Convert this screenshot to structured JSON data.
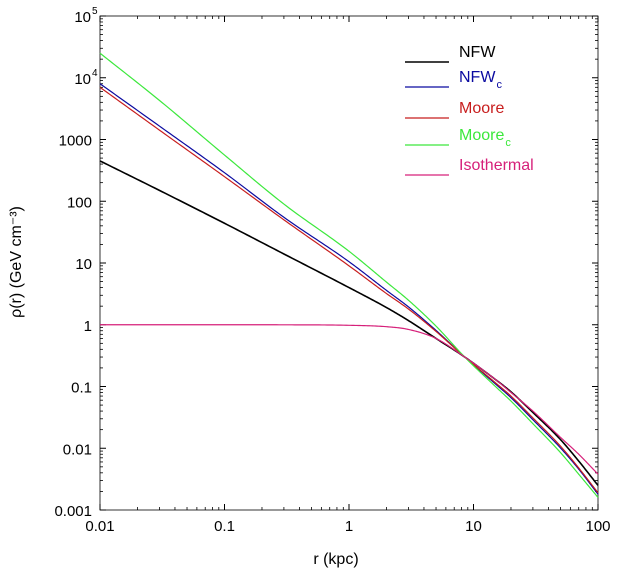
{
  "chart_data": {
    "type": "line",
    "xscale": "log",
    "yscale": "log",
    "xlim": [
      0.01,
      100
    ],
    "ylim": [
      0.001,
      100000
    ],
    "xlabel": "r (kpc)",
    "ylabel": "ρ(r) (GeV cm⁻³)",
    "x_ticks": [
      {
        "value": 0.01,
        "label": "0.01"
      },
      {
        "value": 0.1,
        "label": "0.1"
      },
      {
        "value": 1,
        "label": "1"
      },
      {
        "value": 10,
        "label": "10"
      },
      {
        "value": 100,
        "label": "100"
      }
    ],
    "y_ticks": [
      {
        "value": 0.001,
        "label": "0.001"
      },
      {
        "value": 0.01,
        "label": "0.01"
      },
      {
        "value": 0.1,
        "label": "0.1"
      },
      {
        "value": 1,
        "label": "1"
      },
      {
        "value": 10,
        "label": "10"
      },
      {
        "value": 100,
        "label": "100"
      },
      {
        "value": 1000,
        "label": "1000"
      },
      {
        "value": 10000,
        "label": "10",
        "exponent": "4"
      },
      {
        "value": 100000,
        "label": "10",
        "exponent": "5"
      }
    ],
    "legend_position": "top-right",
    "series": [
      {
        "name": "NFW",
        "subscript": "",
        "color": "#000000",
        "stroke": "medium",
        "x": [
          0.01,
          0.03,
          0.1,
          0.3,
          1,
          2,
          3,
          5,
          8.5,
          15,
          20,
          30,
          50,
          70,
          100
        ],
        "values": [
          450,
          150,
          44,
          14,
          4.0,
          1.9,
          1.17,
          0.6,
          0.3,
          0.13,
          0.082,
          0.038,
          0.0138,
          0.0062,
          0.0025
        ]
      },
      {
        "name": "NFW",
        "subscript": "c",
        "color": "#0a0aa0",
        "stroke": "thin",
        "x": [
          0.01,
          0.03,
          0.1,
          0.3,
          1,
          2,
          3,
          5,
          8.5,
          15,
          20,
          30,
          50,
          70,
          100
        ],
        "values": [
          8000,
          1650,
          290,
          55,
          10.5,
          3.6,
          1.95,
          0.81,
          0.3,
          0.11,
          0.066,
          0.029,
          0.0101,
          0.0046,
          0.0018
        ]
      },
      {
        "name": "Moore",
        "subscript": "",
        "color": "#c81e1e",
        "stroke": "thin",
        "x": [
          0.01,
          0.03,
          0.1,
          0.3,
          1,
          2,
          3,
          5,
          8.5,
          15,
          20,
          30,
          50,
          70,
          100
        ],
        "values": [
          7000,
          1420,
          250,
          50,
          9.0,
          3.2,
          1.8,
          0.78,
          0.3,
          0.115,
          0.07,
          0.031,
          0.0108,
          0.0048,
          0.0019
        ]
      },
      {
        "name": "Moore",
        "subscript": "c",
        "color": "#3ce83c",
        "stroke": "thin",
        "x": [
          0.01,
          0.03,
          0.1,
          0.3,
          1,
          2,
          3,
          5,
          8.5,
          15,
          20,
          30,
          50,
          70,
          100
        ],
        "values": [
          25000,
          4300,
          560,
          90,
          15.5,
          4.9,
          2.5,
          0.95,
          0.3,
          0.1,
          0.058,
          0.025,
          0.0085,
          0.0038,
          0.0016
        ]
      },
      {
        "name": "Isothermal",
        "subscript": "",
        "color": "#d6207a",
        "stroke": "thin",
        "x": [
          0.01,
          0.1,
          0.3,
          1,
          2,
          3,
          5,
          8.5,
          15,
          20,
          30,
          50,
          70,
          100
        ],
        "values": [
          1.0,
          1.0,
          0.998,
          0.98,
          0.93,
          0.84,
          0.6,
          0.3,
          0.13,
          0.08,
          0.04,
          0.015,
          0.008,
          0.0038
        ]
      }
    ]
  }
}
